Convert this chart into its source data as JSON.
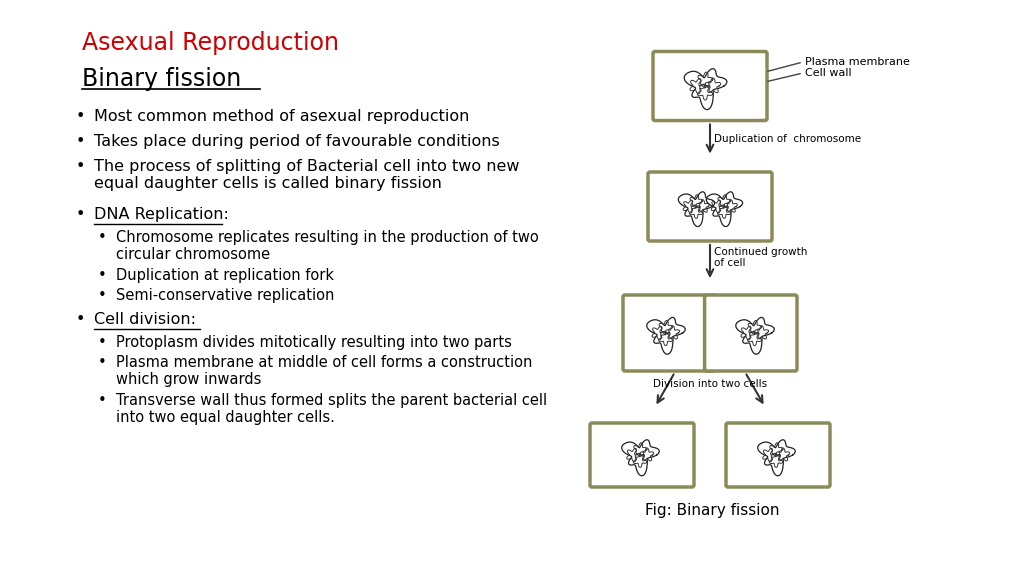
{
  "title_red": "Asexual Reproduction",
  "title_black": "Binary fission",
  "background_color": "#ffffff",
  "text_color": "#000000",
  "red_color": "#cc0000",
  "bullet_points": [
    "Most common method of asexual reproduction",
    "Takes place during period of favourable conditions",
    "The process of splitting of Bacterial cell into two new\nequal daughter cells is called binary fission"
  ],
  "sub_heading1": "DNA Replication:",
  "sub_bullets1": [
    "Chromosome replicates resulting in the production of two\ncircular chromosome",
    "Duplication at replication fork",
    "Semi-conservative replication"
  ],
  "sub_heading2": "Cell division:",
  "sub_bullets2": [
    "Protoplasm divides mitotically resulting into two parts",
    "Plasma membrane at middle of cell forms a construction\nwhich grow inwards",
    "Transverse wall thus formed splits the parent bacterial cell\ninto two equal daughter cells."
  ],
  "fig_caption": "Fig: Binary fission",
  "cell_border_color": "#8b8b5a",
  "cell_fill_color": "#ffffff",
  "arrow_color": "#333333",
  "label1": "Plasma membrane",
  "label2": "Cell wall",
  "label3": "Duplication of  chromosome",
  "label4": "Continued growth\nof cell",
  "label5": "Division into two cells"
}
